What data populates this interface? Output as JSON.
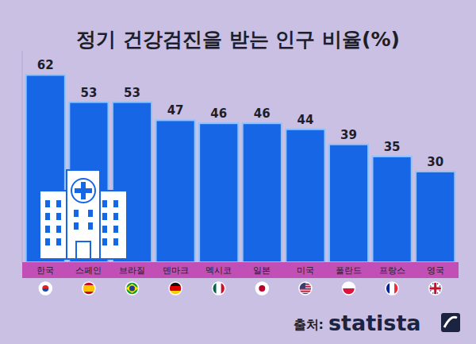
{
  "chart_data": {
    "type": "bar",
    "title": "정기 건강검진을 받는 인구 비율(%)",
    "categories": [
      "한국",
      "스페인",
      "브라질",
      "덴마크",
      "멕시코",
      "일본",
      "미국",
      "폴란드",
      "프랑스",
      "영국"
    ],
    "values": [
      62,
      53,
      53,
      47,
      46,
      46,
      44,
      39,
      35,
      30
    ],
    "color": "#1766e6",
    "ylim": [
      0,
      70
    ],
    "data_labels": true,
    "tick_labels": "x",
    "grid": false,
    "source_label": "출처:",
    "source": "statista"
  }
}
